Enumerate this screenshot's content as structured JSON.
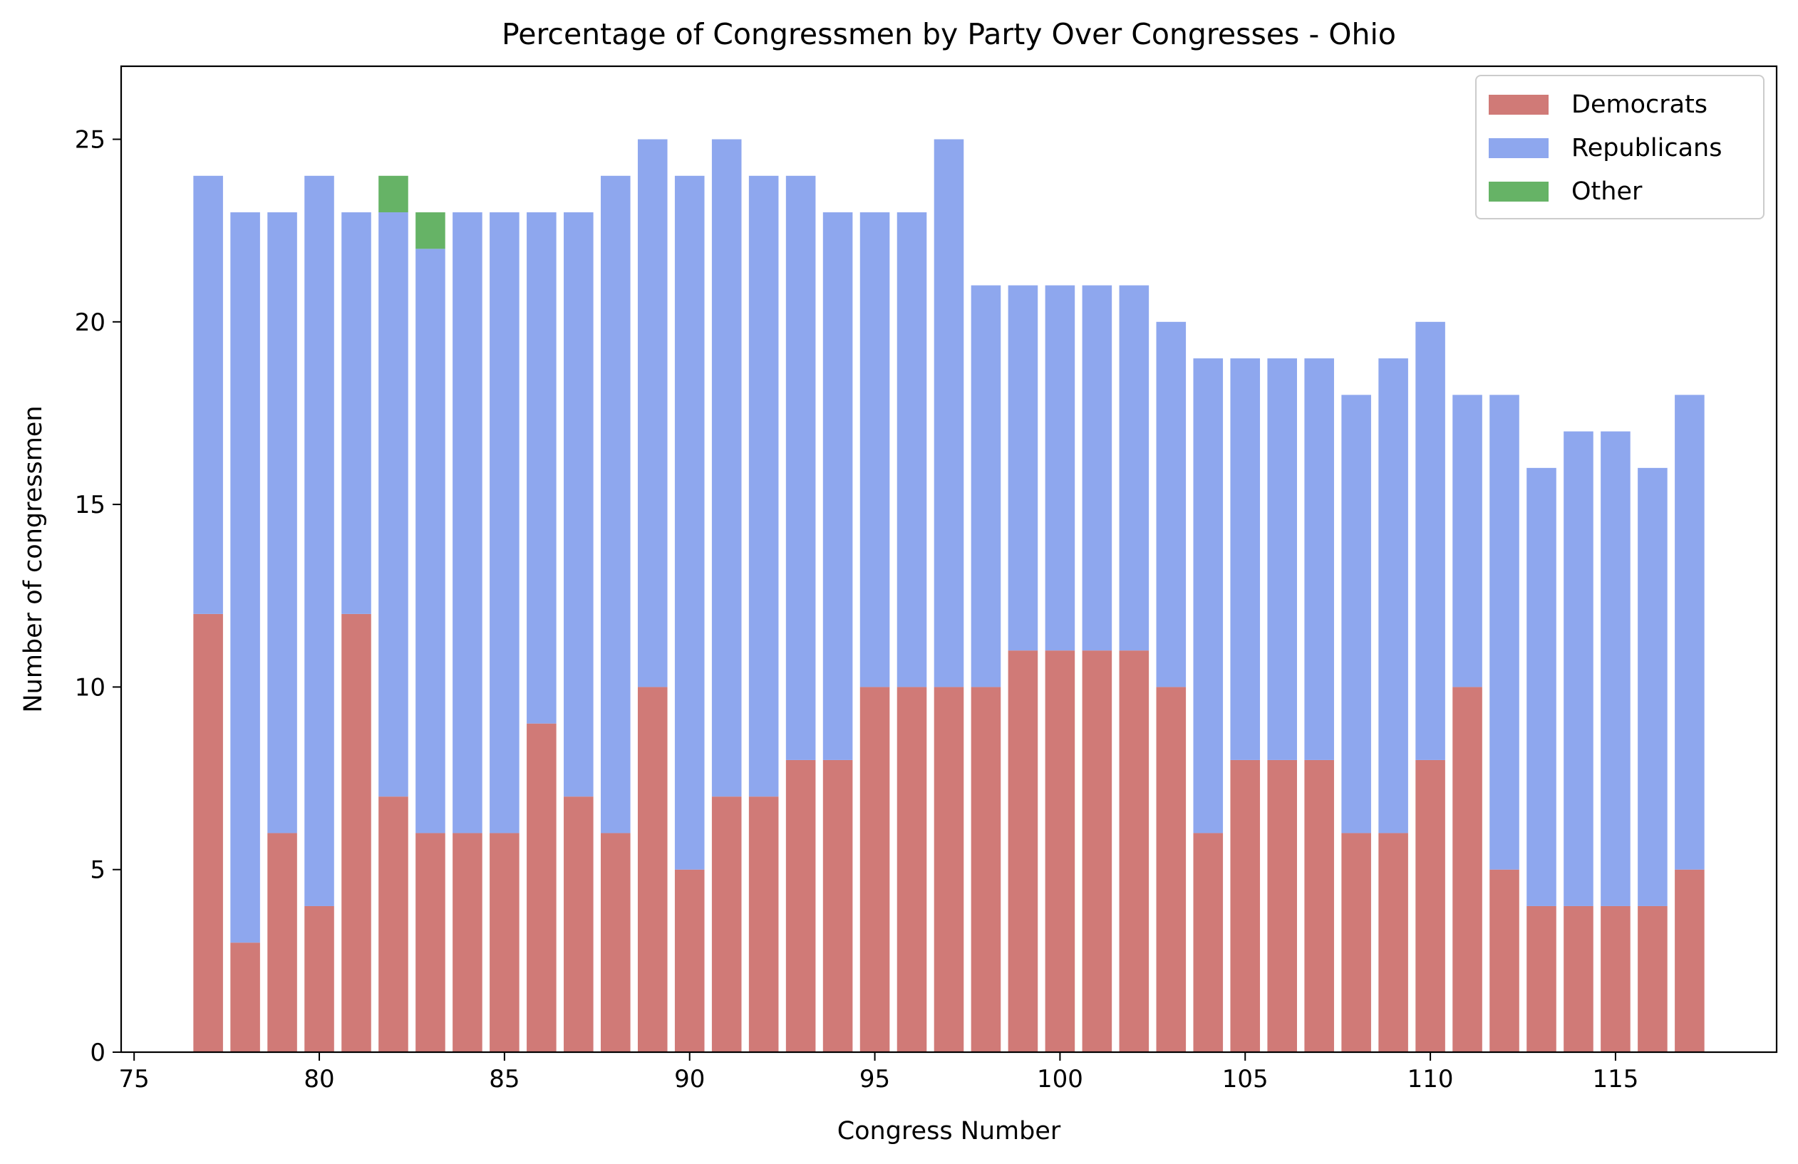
{
  "chart_data": {
    "type": "bar",
    "stacked": true,
    "title": "Percentage of Congressmen by Party Over Congresses - Ohio",
    "xlabel": "Congress Number",
    "ylabel": "Number of congressmen",
    "xlim": [
      74.65,
      119.35
    ],
    "ylim": [
      0,
      27
    ],
    "xticks": [
      75,
      80,
      85,
      90,
      95,
      100,
      105,
      110,
      115
    ],
    "yticks": [
      0,
      5,
      10,
      15,
      20,
      25
    ],
    "grid": false,
    "legend_position": "top-right",
    "x": [
      77,
      78,
      79,
      80,
      81,
      82,
      83,
      84,
      85,
      86,
      87,
      88,
      89,
      90,
      91,
      92,
      93,
      94,
      95,
      96,
      97,
      98,
      99,
      100,
      101,
      102,
      103,
      104,
      105,
      106,
      107,
      108,
      109,
      110,
      111,
      112,
      113,
      114,
      115,
      116,
      117
    ],
    "series": [
      {
        "name": "Democrats",
        "color": "#d07a77",
        "values": [
          12,
          3,
          6,
          4,
          12,
          7,
          6,
          6,
          6,
          9,
          7,
          6,
          10,
          5,
          7,
          7,
          8,
          8,
          10,
          10,
          10,
          10,
          11,
          11,
          11,
          11,
          10,
          6,
          8,
          8,
          8,
          6,
          6,
          8,
          10,
          5,
          4,
          4,
          4,
          4,
          5
        ]
      },
      {
        "name": "Republicans",
        "color": "#8ea7ee",
        "values": [
          12,
          20,
          17,
          20,
          11,
          16,
          16,
          17,
          17,
          14,
          16,
          18,
          15,
          19,
          18,
          17,
          16,
          15,
          13,
          13,
          15,
          11,
          10,
          10,
          10,
          10,
          10,
          13,
          11,
          11,
          11,
          12,
          13,
          12,
          8,
          13,
          12,
          13,
          13,
          12,
          13
        ]
      },
      {
        "name": "Other",
        "color": "#66b366",
        "values": [
          0,
          0,
          0,
          0,
          0,
          1,
          1,
          0,
          0,
          0,
          0,
          0,
          0,
          0,
          0,
          0,
          0,
          0,
          0,
          0,
          0,
          0,
          0,
          0,
          0,
          0,
          0,
          0,
          0,
          0,
          0,
          0,
          0,
          0,
          0,
          0,
          0,
          0,
          0,
          0,
          0
        ]
      }
    ]
  }
}
